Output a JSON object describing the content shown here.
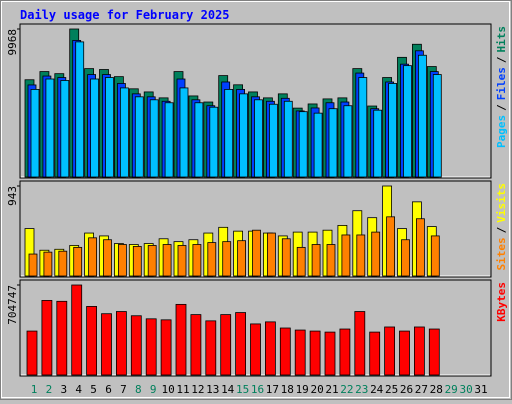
{
  "title": "Daily usage for February 2025",
  "legend_separator": "/",
  "chart_data": [
    {
      "type": "bar",
      "ylim": [
        0,
        9968
      ],
      "yticks": [
        9968
      ],
      "series": [
        {
          "name": "Hits",
          "color": "#00805c",
          "values": [
            6550,
            7100,
            6960,
            9968,
            7300,
            7240,
            6760,
            5940,
            5730,
            5330,
            7100,
            5460,
            5050,
            6830,
            6210,
            5730,
            5330,
            5600,
            4640,
            4920,
            5260,
            5330,
            7300,
            4780,
            6700,
            8060,
            8940,
            7440,
            null,
            null,
            null
          ]
        },
        {
          "name": "Files",
          "color": "#0040ff",
          "values": [
            6200,
            6800,
            6700,
            9200,
            6900,
            6900,
            6300,
            5600,
            5400,
            5100,
            6600,
            5200,
            4800,
            6400,
            5900,
            5400,
            5100,
            5300,
            4450,
            4650,
            5000,
            5050,
            7000,
            4600,
            6400,
            7600,
            8500,
            7100,
            null,
            null,
            null
          ]
        },
        {
          "name": "Pages",
          "color": "#00c0ff",
          "values": [
            5900,
            6600,
            6500,
            9100,
            6600,
            6700,
            6000,
            5400,
            5200,
            5000,
            6000,
            5000,
            4700,
            5900,
            5600,
            5200,
            4900,
            5100,
            4400,
            4300,
            4600,
            4800,
            6700,
            4500,
            6300,
            7500,
            8200,
            6900,
            null,
            null,
            null
          ]
        }
      ]
    },
    {
      "type": "bar",
      "ylim": [
        0,
        943
      ],
      "yticks": [
        943
      ],
      "series": [
        {
          "name": "Visits",
          "color": "#ffff00",
          "values": [
            497,
            270,
            280,
            320,
            450,
            420,
            340,
            330,
            340,
            390,
            360,
            380,
            450,
            510,
            470,
            470,
            450,
            420,
            460,
            460,
            480,
            530,
            684,
            611,
            943,
            497,
            777,
            518,
            null,
            null,
            null
          ]
        },
        {
          "name": "Sites",
          "color": "#ff8000",
          "values": [
            230,
            250,
            260,
            300,
            400,
            380,
            330,
            310,
            320,
            330,
            320,
            330,
            350,
            360,
            370,
            480,
            450,
            390,
            300,
            330,
            330,
            430,
            430,
            460,
            620,
            380,
            600,
            420,
            null,
            null,
            null
          ]
        }
      ]
    },
    {
      "type": "bar",
      "ylim": [
        0,
        704747
      ],
      "yticks": [
        704747
      ],
      "categories": [
        "1",
        "2",
        "3",
        "4",
        "5",
        "6",
        "7",
        "8",
        "9",
        "10",
        "11",
        "12",
        "13",
        "14",
        "15",
        "16",
        "17",
        "18",
        "19",
        "20",
        "21",
        "22",
        "23",
        "24",
        "25",
        "26",
        "27",
        "28",
        "29",
        "30",
        "31"
      ],
      "category_colors": [
        "#00805c",
        "#00805c",
        "#000000",
        "#000000",
        "#000000",
        "#000000",
        "#000000",
        "#00805c",
        "#00805c",
        "#000000",
        "#000000",
        "#000000",
        "#000000",
        "#000000",
        "#00805c",
        "#00805c",
        "#000000",
        "#000000",
        "#000000",
        "#000000",
        "#000000",
        "#00805c",
        "#00805c",
        "#000000",
        "#000000",
        "#000000",
        "#000000",
        "#000000",
        "#00805c",
        "#00805c",
        "#000000"
      ],
      "series": [
        {
          "name": "KBytes",
          "color": "#ff0000",
          "values": [
            344000,
            584000,
            577000,
            704747,
            537000,
            480000,
            497000,
            464000,
            440000,
            432000,
            553000,
            473000,
            424000,
            473000,
            489000,
            400000,
            416000,
            368000,
            352000,
            344000,
            336000,
            360000,
            497000,
            336000,
            376000,
            344000,
            376000,
            360000,
            null,
            null,
            null
          ]
        }
      ]
    }
  ]
}
